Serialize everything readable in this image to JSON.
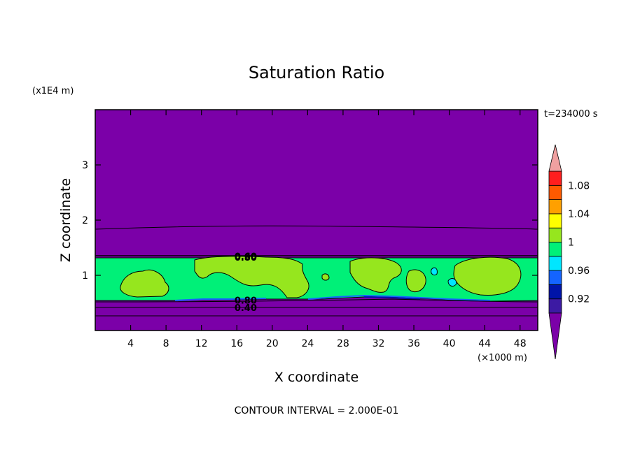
{
  "chart_data": {
    "type": "contour",
    "title": "Saturation Ratio",
    "xlabel": "X coordinate",
    "ylabel": "Z coordinate",
    "x_unit": "(×1000 m)",
    "y_unit": "(x1E4 m)",
    "time_label": "t=234000 s",
    "contour_interval_label": "CONTOUR INTERVAL = 2.000E-01",
    "xlim": [
      0,
      50
    ],
    "ylim": [
      0,
      4
    ],
    "x_ticks": [
      4,
      8,
      12,
      16,
      20,
      24,
      28,
      32,
      36,
      40,
      44,
      48
    ],
    "y_ticks": [
      1,
      2,
      3
    ],
    "grid": false,
    "contour_labels": [
      {
        "text": "0.60",
        "x": 17,
        "z": 1.35
      },
      {
        "text": "0.80",
        "x": 17,
        "z": 1.33
      },
      {
        "text": "0.80",
        "x": 17,
        "z": 0.55
      },
      {
        "text": "0.40",
        "x": 17,
        "z": 0.42
      }
    ],
    "colorbar": {
      "tick_labels": [
        "1.08",
        "1.04",
        "1",
        "0.96",
        "0.92"
      ],
      "tick_values": [
        1.08,
        1.04,
        1.0,
        0.96,
        0.92
      ],
      "colors": [
        "#7b00a8",
        "#3c1aa3",
        "#0014a8",
        "#1464ff",
        "#00e6ff",
        "#00f078",
        "#96e61e",
        "#ffff00",
        "#ffa000",
        "#ff5a00",
        "#ff1e1e",
        "#f0a0a0"
      ],
      "boundaries": [
        0.9,
        0.92,
        0.94,
        0.96,
        0.98,
        1.0,
        1.02,
        1.04,
        1.06,
        1.08,
        1.1
      ]
    },
    "regions": {
      "background": "#7b00a8",
      "layer": "#00f078",
      "patch": "#96e61e",
      "contour_line": "#000000"
    }
  }
}
